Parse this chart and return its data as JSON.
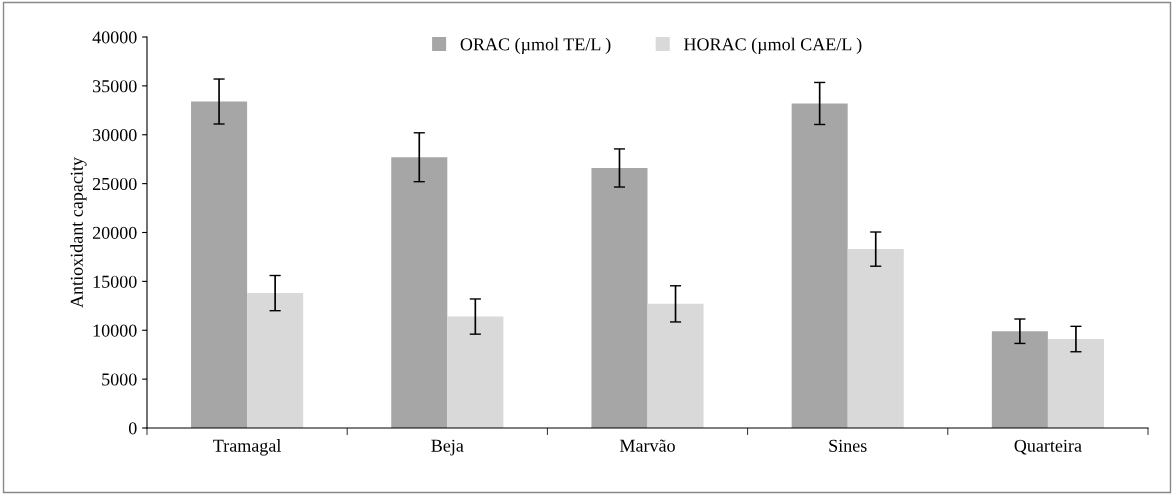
{
  "chart_data": {
    "type": "bar",
    "ylabel": "Antioxidant capacity",
    "categories": [
      "Tramagal",
      "Beja",
      "Marvão",
      "Sines",
      "Quarteira"
    ],
    "series": [
      {
        "name": "ORAC (µmol TE/L )",
        "color": "#a6a6a6",
        "values": [
          33400,
          27700,
          26600,
          33200,
          9900
        ],
        "errors": [
          2300,
          2500,
          1950,
          2150,
          1250
        ]
      },
      {
        "name": "HORAC (µmol CAE/L )",
        "color": "#d9d9d9",
        "values": [
          13800,
          11400,
          12700,
          18300,
          9100
        ],
        "errors": [
          1800,
          1800,
          1850,
          1750,
          1300
        ]
      }
    ],
    "ylim": [
      0,
      40000
    ],
    "yticks": [
      0,
      5000,
      10000,
      15000,
      20000,
      25000,
      30000,
      35000,
      40000
    ],
    "grid": false,
    "legend": "top"
  }
}
